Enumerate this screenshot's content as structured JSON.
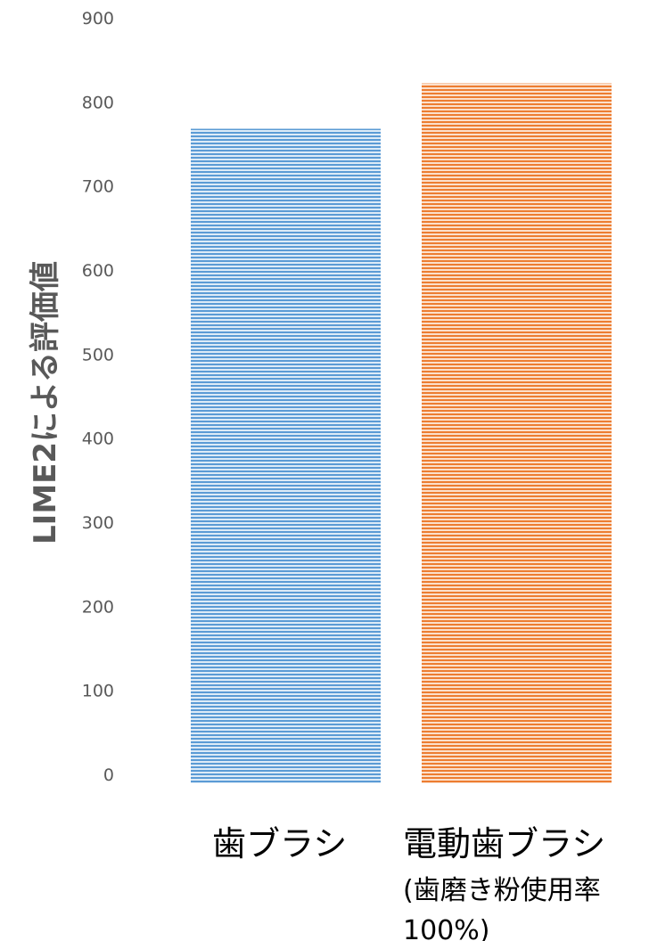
{
  "chart_data": {
    "type": "bar",
    "title": "",
    "xlabel": "",
    "ylabel": "LIME2による評価値",
    "ylim": [
      0,
      900
    ],
    "yticks": [
      "0",
      "100",
      "200",
      "300",
      "400",
      "500",
      "600",
      "700",
      "800",
      "900"
    ],
    "grid": false,
    "categories": [
      {
        "lines": [
          "歯ブラシ"
        ]
      },
      {
        "lines": [
          "電動歯ブラシ",
          "(歯磨き粉使用率",
          "100%)"
        ]
      }
    ],
    "values": [
      768,
      822
    ],
    "colors": [
      "#5b9bd5",
      "#ed7d31"
    ]
  }
}
